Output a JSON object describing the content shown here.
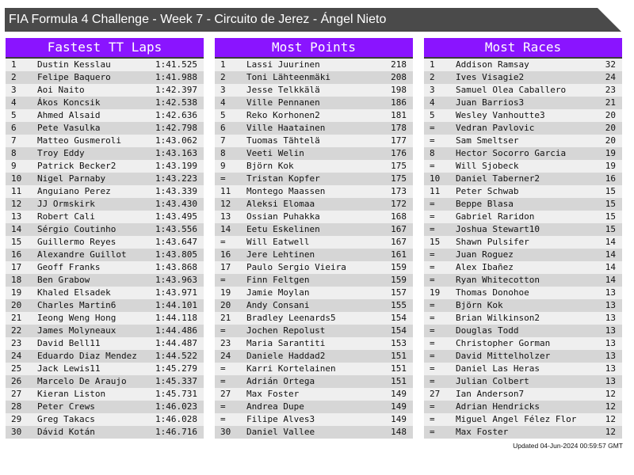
{
  "title": "FIA Formula 4 Challenge - Week 7 - Circuito de Jerez - Ángel Nieto",
  "colors": {
    "header": "#8a14ff",
    "titlebar": "#4a4a4a",
    "row_light": "#efefef",
    "row_dark": "#d6d6d6"
  },
  "boards": [
    {
      "title": "Fastest TT Laps",
      "rows": [
        [
          "1",
          "Dustin Kesslau",
          "1:41.525"
        ],
        [
          "2",
          "Felipe Baquero",
          "1:41.988"
        ],
        [
          "3",
          "Aoi Naito",
          "1:42.397"
        ],
        [
          "4",
          "Ákos Koncsik",
          "1:42.538"
        ],
        [
          "5",
          "Ahmed Alsaid",
          "1:42.636"
        ],
        [
          "6",
          "Pete Vasulka",
          "1:42.798"
        ],
        [
          "7",
          "Matteo Gusmeroli",
          "1:43.062"
        ],
        [
          "8",
          "Troy Eddy",
          "1:43.163"
        ],
        [
          "9",
          "Patrick Becker2",
          "1:43.199"
        ],
        [
          "10",
          "Nigel Parnaby",
          "1:43.223"
        ],
        [
          "11",
          "Anguiano Perez",
          "1:43.339"
        ],
        [
          "12",
          "JJ Ormskirk",
          "1:43.430"
        ],
        [
          "13",
          "Robert Cali",
          "1:43.495"
        ],
        [
          "14",
          "Sérgio Coutinho",
          "1:43.556"
        ],
        [
          "15",
          "Guillermo Reyes",
          "1:43.647"
        ],
        [
          "16",
          "Alexandre Guillot",
          "1:43.805"
        ],
        [
          "17",
          "Geoff Franks",
          "1:43.868"
        ],
        [
          "18",
          "Ben Grabow",
          "1:43.963"
        ],
        [
          "19",
          "Khaled Elsadek",
          "1:43.971"
        ],
        [
          "20",
          "Charles Martin6",
          "1:44.101"
        ],
        [
          "21",
          "Ieong Weng Hong",
          "1:44.118"
        ],
        [
          "22",
          "James Molyneaux",
          "1:44.486"
        ],
        [
          "23",
          "David Bell11",
          "1:44.487"
        ],
        [
          "24",
          "Eduardo Diaz Mendez",
          "1:44.522"
        ],
        [
          "25",
          "Jack Lewis11",
          "1:45.279"
        ],
        [
          "26",
          "Marcelo De Araujo",
          "1:45.337"
        ],
        [
          "27",
          "Kieran Liston",
          "1:45.731"
        ],
        [
          "28",
          "Peter Crews",
          "1:46.023"
        ],
        [
          "29",
          "Greg Takacs",
          "1:46.028"
        ],
        [
          "30",
          "Dávid Kotán",
          "1:46.716"
        ]
      ]
    },
    {
      "title": "Most Points",
      "rows": [
        [
          "1",
          "Lassi Juurinen",
          "218"
        ],
        [
          "2",
          "Toni Lähteenmäki",
          "208"
        ],
        [
          "3",
          "Jesse Telkkälä",
          "198"
        ],
        [
          "4",
          "Ville Pennanen",
          "186"
        ],
        [
          "5",
          "Reko Korhonen2",
          "181"
        ],
        [
          "6",
          "Ville Haatainen",
          "178"
        ],
        [
          "7",
          "Tuomas Tähtelä",
          "177"
        ],
        [
          "8",
          "Veeti Welin",
          "176"
        ],
        [
          "9",
          "Björn Kok",
          "175"
        ],
        [
          "=",
          "Tristan Kopfer",
          "175"
        ],
        [
          "11",
          "Montego Maassen",
          "173"
        ],
        [
          "12",
          "Aleksi Elomaa",
          "172"
        ],
        [
          "13",
          "Ossian Puhakka",
          "168"
        ],
        [
          "14",
          "Eetu Eskelinen",
          "167"
        ],
        [
          "=",
          "Will Eatwell",
          "167"
        ],
        [
          "16",
          "Jere Lehtinen",
          "161"
        ],
        [
          "17",
          "Paulo Sergio Vieira",
          "159"
        ],
        [
          "=",
          "Finn Feltgen",
          "159"
        ],
        [
          "19",
          "Jamie Moylan",
          "157"
        ],
        [
          "20",
          "Andy Consani",
          "155"
        ],
        [
          "21",
          "Bradley Leenards5",
          "154"
        ],
        [
          "=",
          "Jochen Repolust",
          "154"
        ],
        [
          "23",
          "Maria Sarantiti",
          "153"
        ],
        [
          "24",
          "Daniele Haddad2",
          "151"
        ],
        [
          "=",
          "Karri Kortelainen",
          "151"
        ],
        [
          "=",
          "Adrián Ortega",
          "151"
        ],
        [
          "27",
          "Max Foster",
          "149"
        ],
        [
          "=",
          "Andrea Dupe",
          "149"
        ],
        [
          "=",
          "Filipe Alves3",
          "149"
        ],
        [
          "30",
          "Daniel Vallee",
          "148"
        ]
      ]
    },
    {
      "title": "Most Races",
      "rows": [
        [
          "1",
          "Addison Ramsay",
          "32"
        ],
        [
          "2",
          "Ives Visagie2",
          "24"
        ],
        [
          "3",
          "Samuel Olea Caballero",
          "23"
        ],
        [
          "4",
          "Juan Barrios3",
          "21"
        ],
        [
          "5",
          "Wesley Vanhoutte3",
          "20"
        ],
        [
          "=",
          "Vedran Pavlovic",
          "20"
        ],
        [
          "=",
          "Sam Smeltser",
          "20"
        ],
        [
          "8",
          "Hector Socorro Garcia",
          "19"
        ],
        [
          "=",
          "Will Sjobeck",
          "19"
        ],
        [
          "10",
          "Daniel Taberner2",
          "16"
        ],
        [
          "11",
          "Peter Schwab",
          "15"
        ],
        [
          "=",
          "Beppe Blasa",
          "15"
        ],
        [
          "=",
          "Gabriel Raridon",
          "15"
        ],
        [
          "=",
          "Joshua Stewart10",
          "15"
        ],
        [
          "15",
          "Shawn Pulsifer",
          "14"
        ],
        [
          "=",
          "Juan Roguez",
          "14"
        ],
        [
          "=",
          "Alex Ibañez",
          "14"
        ],
        [
          "=",
          "Ryan Whitecotton",
          "14"
        ],
        [
          "19",
          "Thomas Donohoe",
          "13"
        ],
        [
          "=",
          "Björn Kok",
          "13"
        ],
        [
          "=",
          "Brian Wilkinson2",
          "13"
        ],
        [
          "=",
          "Douglas Todd",
          "13"
        ],
        [
          "=",
          "Christopher Gorman",
          "13"
        ],
        [
          "=",
          "David Mittelholzer",
          "13"
        ],
        [
          "=",
          "Daniel Las Heras",
          "13"
        ],
        [
          "=",
          "Julian Colbert",
          "13"
        ],
        [
          "27",
          "Ian Anderson7",
          "12"
        ],
        [
          "=",
          "Adrian Hendricks",
          "12"
        ],
        [
          "=",
          "Miguel Angel Félez Flor",
          "12"
        ],
        [
          "=",
          "Max Foster",
          "12"
        ]
      ]
    }
  ],
  "footer": "Updated 04-Jun-2024 00:59:57 GMT"
}
